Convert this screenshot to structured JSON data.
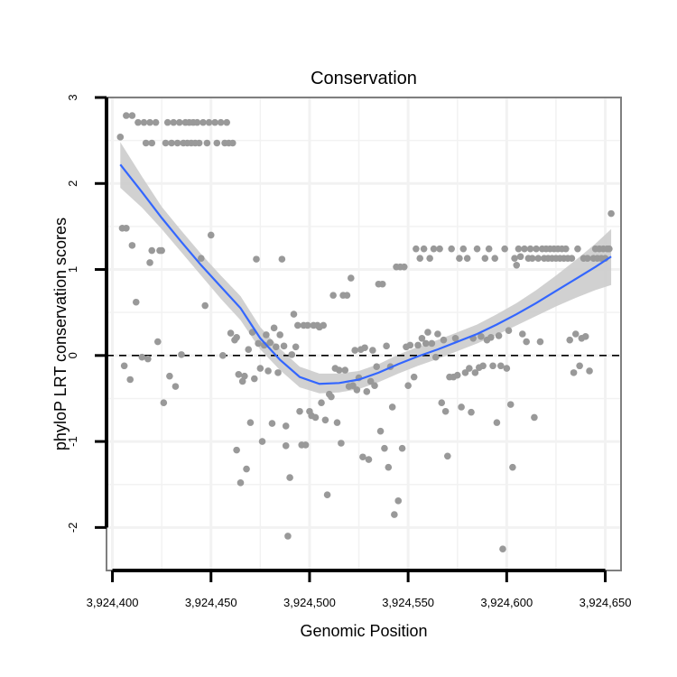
{
  "chart_data": {
    "type": "scatter",
    "title": "Conservation",
    "xlabel": "Genomic Position",
    "ylabel": "phyloP LRT conservation scores",
    "xlim": [
      3924397,
      3924658
    ],
    "ylim": [
      -2.5,
      3.0
    ],
    "x_ticks": [
      3924400,
      3924450,
      3924500,
      3924550,
      3924600,
      3924650
    ],
    "x_tick_labels": [
      "3,924,400",
      "3,924,450",
      "3,924,500",
      "3,924,550",
      "3,924,600",
      "3,924,650"
    ],
    "y_ticks": [
      -2,
      -1,
      0,
      1,
      2,
      3
    ],
    "y_tick_labels": [
      "-2",
      "-1",
      "0",
      "1",
      "2",
      "3"
    ],
    "reference_line": {
      "y": 0,
      "style": "dashed"
    },
    "colors": {
      "points": "#999999",
      "smooth": "#3366FF",
      "ribbon": "#CCCCCC",
      "panel_border": "#7F7F7F",
      "grid": "#F2F2F2"
    },
    "points": [
      [
        3924404,
        2.54
      ],
      [
        3924405,
        1.48
      ],
      [
        3924406,
        -0.12
      ],
      [
        3924407,
        1.48
      ],
      [
        3924407,
        2.79
      ],
      [
        3924409,
        -0.28
      ],
      [
        3924410,
        2.79
      ],
      [
        3924410,
        1.28
      ],
      [
        3924412,
        0.62
      ],
      [
        3924413,
        2.71
      ],
      [
        3924415,
        -0.02
      ],
      [
        3924416,
        2.71
      ],
      [
        3924417,
        2.47
      ],
      [
        3924418,
        -0.04
      ],
      [
        3924419,
        2.71
      ],
      [
        3924419,
        1.08
      ],
      [
        3924420,
        2.47
      ],
      [
        3924420,
        1.22
      ],
      [
        3924422,
        2.71
      ],
      [
        3924423,
        0.16
      ],
      [
        3924424,
        1.22
      ],
      [
        3924425,
        1.22
      ],
      [
        3924426,
        -0.55
      ],
      [
        3924427,
        2.47
      ],
      [
        3924428,
        2.71
      ],
      [
        3924429,
        -0.24
      ],
      [
        3924430,
        2.47
      ],
      [
        3924431,
        2.71
      ],
      [
        3924432,
        -0.36
      ],
      [
        3924433,
        2.47
      ],
      [
        3924434,
        2.71
      ],
      [
        3924435,
        0.01
      ],
      [
        3924436,
        2.47
      ],
      [
        3924437,
        2.71
      ],
      [
        3924438,
        2.47
      ],
      [
        3924439,
        2.71
      ],
      [
        3924440,
        2.47
      ],
      [
        3924441,
        2.71
      ],
      [
        3924442,
        2.47
      ],
      [
        3924443,
        2.71
      ],
      [
        3924444,
        2.47
      ],
      [
        3924445,
        1.13
      ],
      [
        3924446,
        2.71
      ],
      [
        3924447,
        0.58
      ],
      [
        3924448,
        2.47
      ],
      [
        3924449,
        2.71
      ],
      [
        3924450,
        1.4
      ],
      [
        3924452,
        2.71
      ],
      [
        3924453,
        2.47
      ],
      [
        3924455,
        2.71
      ],
      [
        3924456,
        0.0
      ],
      [
        3924457,
        2.47
      ],
      [
        3924458,
        2.71
      ],
      [
        3924459,
        2.47
      ],
      [
        3924460,
        0.26
      ],
      [
        3924461,
        2.47
      ],
      [
        3924462,
        0.18
      ],
      [
        3924463,
        -1.1
      ],
      [
        3924463,
        0.21
      ],
      [
        3924464,
        -0.22
      ],
      [
        3924465,
        -1.48
      ],
      [
        3924466,
        -0.3
      ],
      [
        3924467,
        -0.24
      ],
      [
        3924468,
        -1.32
      ],
      [
        3924469,
        0.07
      ],
      [
        3924470,
        -0.78
      ],
      [
        3924471,
        0.27
      ],
      [
        3924472,
        -0.27
      ],
      [
        3924473,
        1.12
      ],
      [
        3924474,
        0.14
      ],
      [
        3924475,
        -0.15
      ],
      [
        3924476,
        -1.0
      ],
      [
        3924477,
        0.12
      ],
      [
        3924478,
        0.24
      ],
      [
        3924479,
        -0.18
      ],
      [
        3924480,
        0.15
      ],
      [
        3924481,
        -0.79
      ],
      [
        3924482,
        0.32
      ],
      [
        3924483,
        0.1
      ],
      [
        3924484,
        -0.2
      ],
      [
        3924485,
        0.24
      ],
      [
        3924486,
        1.12
      ],
      [
        3924487,
        0.11
      ],
      [
        3924488,
        -0.82
      ],
      [
        3924488,
        -1.05
      ],
      [
        3924489,
        -2.1
      ],
      [
        3924490,
        -1.42
      ],
      [
        3924491,
        0.01
      ],
      [
        3924492,
        0.48
      ],
      [
        3924493,
        0.1
      ],
      [
        3924494,
        0.35
      ],
      [
        3924495,
        -0.65
      ],
      [
        3924496,
        -1.04
      ],
      [
        3924497,
        0.35
      ],
      [
        3924498,
        -1.04
      ],
      [
        3924499,
        0.35
      ],
      [
        3924500,
        -0.65
      ],
      [
        3924501,
        -0.7
      ],
      [
        3924502,
        0.35
      ],
      [
        3924503,
        -0.72
      ],
      [
        3924504,
        0.35
      ],
      [
        3924505,
        0.33
      ],
      [
        3924506,
        -0.55
      ],
      [
        3924507,
        0.35
      ],
      [
        3924508,
        -0.75
      ],
      [
        3924509,
        -1.62
      ],
      [
        3924510,
        -0.45
      ],
      [
        3924511,
        -0.48
      ],
      [
        3924512,
        0.7
      ],
      [
        3924513,
        -0.15
      ],
      [
        3924514,
        -0.78
      ],
      [
        3924515,
        -0.17
      ],
      [
        3924516,
        -1.02
      ],
      [
        3924517,
        0.7
      ],
      [
        3924518,
        -0.17
      ],
      [
        3924519,
        0.7
      ],
      [
        3924520,
        -0.36
      ],
      [
        3924521,
        0.9
      ],
      [
        3924522,
        -0.35
      ],
      [
        3924523,
        0.06
      ],
      [
        3924524,
        -0.4
      ],
      [
        3924525,
        -0.26
      ],
      [
        3924526,
        0.07
      ],
      [
        3924527,
        -1.18
      ],
      [
        3924528,
        0.09
      ],
      [
        3924529,
        -0.42
      ],
      [
        3924530,
        -1.21
      ],
      [
        3924531,
        -0.3
      ],
      [
        3924532,
        0.06
      ],
      [
        3924533,
        -0.35
      ],
      [
        3924534,
        -0.13
      ],
      [
        3924535,
        0.83
      ],
      [
        3924536,
        -0.88
      ],
      [
        3924537,
        0.83
      ],
      [
        3924538,
        -1.08
      ],
      [
        3924539,
        0.11
      ],
      [
        3924540,
        -1.3
      ],
      [
        3924541,
        -0.13
      ],
      [
        3924542,
        -0.6
      ],
      [
        3924543,
        -1.85
      ],
      [
        3924544,
        1.03
      ],
      [
        3924545,
        -1.69
      ],
      [
        3924546,
        1.03
      ],
      [
        3924547,
        -1.08
      ],
      [
        3924548,
        1.03
      ],
      [
        3924549,
        0.1
      ],
      [
        3924550,
        -0.35
      ],
      [
        3924551,
        0.12
      ],
      [
        3924553,
        -0.25
      ],
      [
        3924554,
        1.24
      ],
      [
        3924555,
        0.12
      ],
      [
        3924556,
        1.13
      ],
      [
        3924557,
        0.2
      ],
      [
        3924558,
        1.24
      ],
      [
        3924559,
        0.14
      ],
      [
        3924560,
        0.27
      ],
      [
        3924561,
        1.13
      ],
      [
        3924562,
        0.14
      ],
      [
        3924563,
        1.24
      ],
      [
        3924564,
        -0.02
      ],
      [
        3924565,
        0.25
      ],
      [
        3924566,
        1.24
      ],
      [
        3924567,
        -0.55
      ],
      [
        3924568,
        0.18
      ],
      [
        3924569,
        -0.65
      ],
      [
        3924570,
        -1.17
      ],
      [
        3924571,
        -0.25
      ],
      [
        3924572,
        1.24
      ],
      [
        3924573,
        -0.25
      ],
      [
        3924574,
        0.2
      ],
      [
        3924575,
        -0.23
      ],
      [
        3924576,
        1.13
      ],
      [
        3924577,
        -0.6
      ],
      [
        3924578,
        1.24
      ],
      [
        3924579,
        -0.2
      ],
      [
        3924580,
        1.13
      ],
      [
        3924581,
        -0.15
      ],
      [
        3924582,
        -0.66
      ],
      [
        3924583,
        0.2
      ],
      [
        3924584,
        -0.2
      ],
      [
        3924585,
        1.24
      ],
      [
        3924586,
        -0.14
      ],
      [
        3924587,
        0.22
      ],
      [
        3924588,
        -0.12
      ],
      [
        3924589,
        1.13
      ],
      [
        3924590,
        0.18
      ],
      [
        3924591,
        1.24
      ],
      [
        3924592,
        0.21
      ],
      [
        3924593,
        -0.12
      ],
      [
        3924594,
        1.13
      ],
      [
        3924595,
        -0.78
      ],
      [
        3924596,
        0.23
      ],
      [
        3924597,
        -0.12
      ],
      [
        3924598,
        -2.25
      ],
      [
        3924599,
        1.24
      ],
      [
        3924600,
        -0.15
      ],
      [
        3924601,
        0.29
      ],
      [
        3924602,
        -0.57
      ],
      [
        3924603,
        -1.3
      ],
      [
        3924604,
        1.13
      ],
      [
        3924605,
        1.05
      ],
      [
        3924606,
        1.24
      ],
      [
        3924607,
        1.15
      ],
      [
        3924608,
        0.25
      ],
      [
        3924609,
        1.24
      ],
      [
        3924610,
        0.16
      ],
      [
        3924611,
        1.13
      ],
      [
        3924612,
        1.24
      ],
      [
        3924613,
        1.13
      ],
      [
        3924614,
        -0.72
      ],
      [
        3924615,
        1.24
      ],
      [
        3924616,
        1.13
      ],
      [
        3924617,
        0.16
      ],
      [
        3924618,
        1.24
      ],
      [
        3924619,
        1.13
      ],
      [
        3924620,
        1.24
      ],
      [
        3924621,
        1.13
      ],
      [
        3924622,
        1.24
      ],
      [
        3924623,
        1.13
      ],
      [
        3924624,
        1.24
      ],
      [
        3924625,
        1.13
      ],
      [
        3924626,
        1.24
      ],
      [
        3924627,
        1.13
      ],
      [
        3924628,
        1.24
      ],
      [
        3924629,
        1.13
      ],
      [
        3924630,
        1.24
      ],
      [
        3924631,
        1.13
      ],
      [
        3924632,
        0.18
      ],
      [
        3924633,
        1.13
      ],
      [
        3924634,
        -0.2
      ],
      [
        3924635,
        0.25
      ],
      [
        3924636,
        1.24
      ],
      [
        3924637,
        -0.12
      ],
      [
        3924638,
        0.2
      ],
      [
        3924639,
        1.13
      ],
      [
        3924640,
        0.22
      ],
      [
        3924641,
        1.13
      ],
      [
        3924642,
        -0.18
      ],
      [
        3924644,
        1.13
      ],
      [
        3924645,
        1.24
      ],
      [
        3924646,
        1.13
      ],
      [
        3924647,
        1.24
      ],
      [
        3924648,
        1.13
      ],
      [
        3924649,
        1.24
      ],
      [
        3924650,
        1.13
      ],
      [
        3924651,
        1.24
      ],
      [
        3924652,
        1.24
      ],
      [
        3924653,
        1.65
      ]
    ],
    "smooth": [
      {
        "x": 3924404,
        "y": 2.22,
        "lo": 1.95,
        "hi": 2.48
      },
      {
        "x": 3924415,
        "y": 1.9,
        "lo": 1.72,
        "hi": 2.08
      },
      {
        "x": 3924425,
        "y": 1.6,
        "lo": 1.47,
        "hi": 1.73
      },
      {
        "x": 3924435,
        "y": 1.32,
        "lo": 1.2,
        "hi": 1.45
      },
      {
        "x": 3924445,
        "y": 1.05,
        "lo": 0.93,
        "hi": 1.18
      },
      {
        "x": 3924455,
        "y": 0.8,
        "lo": 0.66,
        "hi": 0.93
      },
      {
        "x": 3924465,
        "y": 0.55,
        "lo": 0.41,
        "hi": 0.69
      },
      {
        "x": 3924475,
        "y": 0.2,
        "lo": 0.07,
        "hi": 0.33
      },
      {
        "x": 3924485,
        "y": -0.05,
        "lo": -0.17,
        "hi": 0.08
      },
      {
        "x": 3924495,
        "y": -0.25,
        "lo": -0.37,
        "hi": -0.13
      },
      {
        "x": 3924505,
        "y": -0.33,
        "lo": -0.44,
        "hi": -0.21
      },
      {
        "x": 3924515,
        "y": -0.32,
        "lo": -0.43,
        "hi": -0.21
      },
      {
        "x": 3924525,
        "y": -0.28,
        "lo": -0.39,
        "hi": -0.18
      },
      {
        "x": 3924535,
        "y": -0.2,
        "lo": -0.31,
        "hi": -0.1
      },
      {
        "x": 3924545,
        "y": -0.1,
        "lo": -0.21,
        "hi": 0.01
      },
      {
        "x": 3924555,
        "y": -0.01,
        "lo": -0.12,
        "hi": 0.1
      },
      {
        "x": 3924565,
        "y": 0.07,
        "lo": -0.04,
        "hi": 0.18
      },
      {
        "x": 3924575,
        "y": 0.16,
        "lo": 0.05,
        "hi": 0.27
      },
      {
        "x": 3924585,
        "y": 0.25,
        "lo": 0.14,
        "hi": 0.36
      },
      {
        "x": 3924595,
        "y": 0.36,
        "lo": 0.24,
        "hi": 0.48
      },
      {
        "x": 3924605,
        "y": 0.48,
        "lo": 0.35,
        "hi": 0.61
      },
      {
        "x": 3924615,
        "y": 0.61,
        "lo": 0.46,
        "hi": 0.76
      },
      {
        "x": 3924625,
        "y": 0.75,
        "lo": 0.57,
        "hi": 0.93
      },
      {
        "x": 3924635,
        "y": 0.89,
        "lo": 0.67,
        "hi": 1.11
      },
      {
        "x": 3924645,
        "y": 1.03,
        "lo": 0.76,
        "hi": 1.3
      },
      {
        "x": 3924653,
        "y": 1.15,
        "lo": 0.82,
        "hi": 1.47
      }
    ]
  }
}
